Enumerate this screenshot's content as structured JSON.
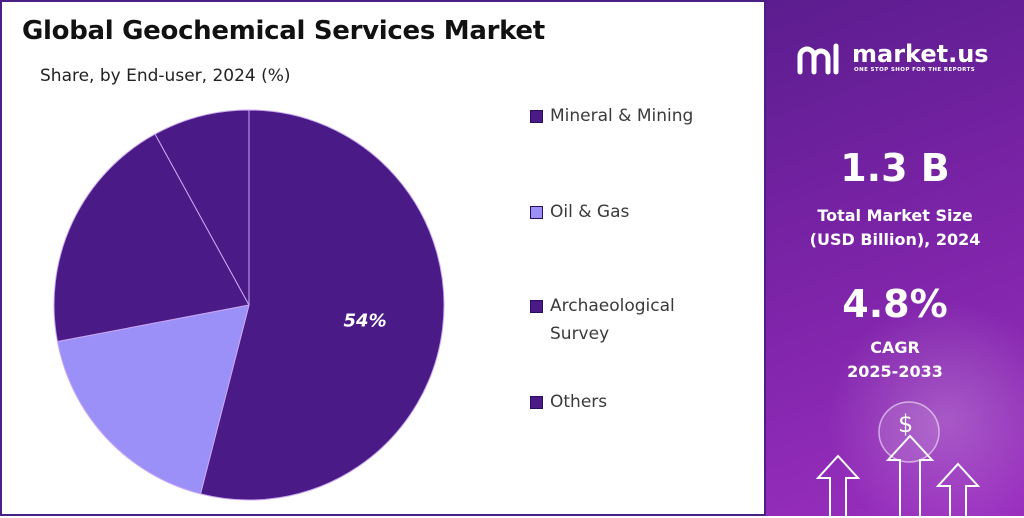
{
  "colors": {
    "series": [
      "#4a1a87",
      "#9b8ff8",
      "#4a1a87",
      "#4a1a87"
    ],
    "panel_gradient": [
      "#5b1d8f",
      "#9b2fc0"
    ],
    "text_dark": "#111111"
  },
  "chart_data": {
    "type": "pie",
    "title": "Global Geochemical Services Market",
    "subtitle": "Share, by End-user, 2024 (%)",
    "categories": [
      "Mineral & Mining",
      "Oil & Gas",
      "Archaeological Survey",
      "Others"
    ],
    "values": [
      54,
      18,
      20,
      8
    ],
    "data_labels": [
      "54%",
      "",
      "",
      ""
    ],
    "legend_position": "right"
  },
  "side": {
    "brand": "market.us",
    "tagline": "ONE STOP SHOP FOR THE REPORTS",
    "market_size_value": "1.3 B",
    "market_size_label_1": "Total Market Size",
    "market_size_label_2": "(USD Billion), 2024",
    "cagr_value": "4.8%",
    "cagr_label_1": "CAGR",
    "cagr_label_2": "2025-2033",
    "currency_symbol": "$",
    "brand_icon": "market-us-logo-icon",
    "decor_icon": "growth-arrows-icon"
  }
}
